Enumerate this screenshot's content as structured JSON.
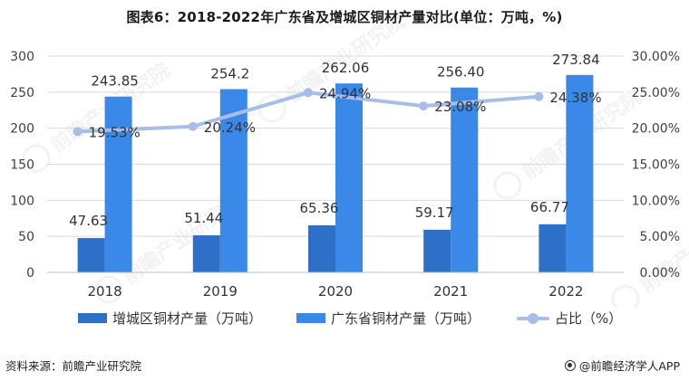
{
  "title": "图表6：2018-2022年广东省及增城区铜材产量对比(单位：万吨，%)",
  "colors": {
    "zengcheng": "#2E6FC7",
    "guangdong": "#3A88E8",
    "ratio": "#A8BEE6",
    "grid": "#D9D9D9"
  },
  "chart_data": {
    "type": "bar",
    "categories": [
      "2018",
      "2019",
      "2020",
      "2021",
      "2022"
    ],
    "series": [
      {
        "name": "增城区铜材产量（万吨）",
        "type": "bar",
        "axis": "left",
        "values": [
          47.63,
          51.44,
          65.36,
          59.17,
          66.77
        ],
        "labels": [
          "47.63",
          "51.44",
          "65.36",
          "59.17",
          "66.77"
        ]
      },
      {
        "name": "广东省铜材产量（万吨）",
        "type": "bar",
        "axis": "left",
        "values": [
          243.85,
          254.2,
          262.06,
          256.4,
          273.84
        ],
        "labels": [
          "243.85",
          "254.2",
          "262.06",
          "256.40",
          "273.84"
        ]
      },
      {
        "name": "占比（%）",
        "type": "line",
        "axis": "right",
        "values": [
          19.53,
          20.24,
          24.94,
          23.08,
          24.38
        ],
        "labels": [
          "19.53%",
          "20.24%",
          "24.94%",
          "23.08%",
          "24.38%"
        ]
      }
    ],
    "y_left": {
      "ylim": [
        0,
        300
      ],
      "ticks": [
        "0",
        "50",
        "100",
        "150",
        "200",
        "250",
        "300"
      ]
    },
    "y_right": {
      "ylim": [
        0,
        30
      ],
      "ticks": [
        "0.00%",
        "5.00%",
        "10.00%",
        "15.00%",
        "20.00%",
        "25.00%",
        "30.00%"
      ]
    },
    "grid": true,
    "legend_position": "bottom"
  },
  "legend": {
    "zengcheng": "增城区铜材产量（万吨）",
    "guangdong": "广东省铜材产量（万吨）",
    "ratio": "占比（%）"
  },
  "footer": {
    "source": "资料来源：前瞻产业研究院",
    "brand": "@前瞻经济学人APP"
  },
  "watermark": "前瞻产业研究院"
}
